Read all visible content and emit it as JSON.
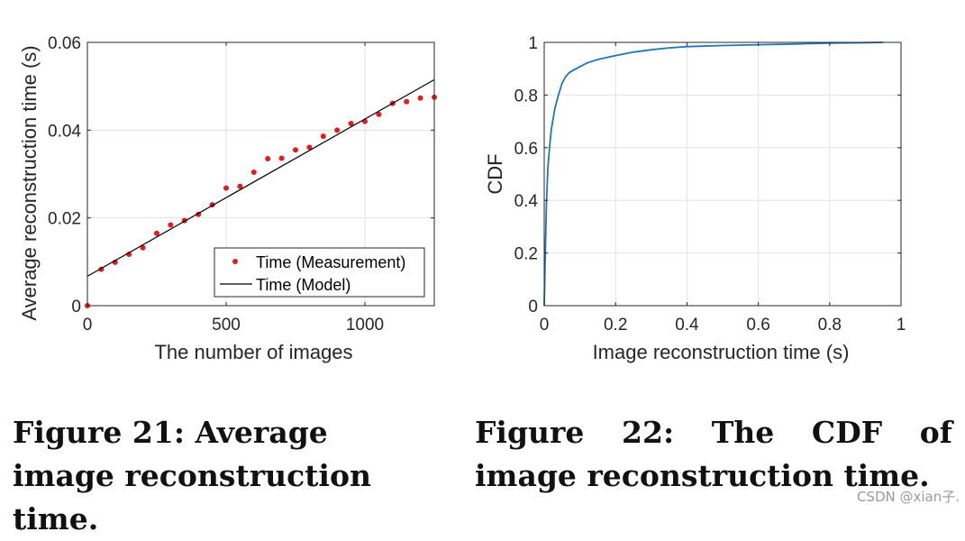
{
  "chart_data": [
    {
      "type": "scatter",
      "xlabel": "The number of images",
      "ylabel": "Average reconstruction time (s)",
      "xlim": [
        0,
        1250
      ],
      "ylim": [
        0,
        0.06
      ],
      "xticks": [
        0,
        500,
        1000
      ],
      "xtick_labels": [
        "0",
        "500",
        "1000"
      ],
      "yticks": [
        0,
        0.02,
        0.04,
        0.06
      ],
      "ytick_labels": [
        "0",
        "0.02",
        "0.04",
        "0.06"
      ],
      "grid": true,
      "legend_position": "bottom-right",
      "series": [
        {
          "name": "Time (Measurement)",
          "kind": "points",
          "color": "#e41a1c",
          "x": [
            0,
            50,
            100,
            150,
            200,
            250,
            300,
            350,
            400,
            450,
            500,
            550,
            600,
            650,
            700,
            750,
            800,
            850,
            900,
            950,
            1000,
            1050,
            1100,
            1150,
            1200,
            1250
          ],
          "y": [
            0.0,
            0.0083,
            0.0099,
            0.0117,
            0.0132,
            0.0165,
            0.0184,
            0.0194,
            0.0208,
            0.023,
            0.0268,
            0.0272,
            0.0304,
            0.0335,
            0.0336,
            0.0355,
            0.0361,
            0.0386,
            0.04,
            0.0415,
            0.042,
            0.0436,
            0.0461,
            0.0465,
            0.0473,
            0.0475
          ]
        },
        {
          "name": "Time (Model)",
          "kind": "line",
          "color": "#000000",
          "x": [
            0,
            1250
          ],
          "y": [
            0.0067,
            0.0515
          ]
        }
      ]
    },
    {
      "type": "line",
      "xlabel": "Image reconstruction time (s)",
      "ylabel": "CDF",
      "xlim": [
        0,
        1
      ],
      "ylim": [
        0,
        1
      ],
      "xticks": [
        0,
        0.2,
        0.4,
        0.6,
        0.8,
        1
      ],
      "xtick_labels": [
        "0",
        "0.2",
        "0.4",
        "0.6",
        "0.8",
        "1"
      ],
      "yticks": [
        0,
        0.2,
        0.4,
        0.6,
        0.8,
        1
      ],
      "ytick_labels": [
        "0",
        "0.2",
        "0.4",
        "0.6",
        "0.8",
        "1"
      ],
      "grid": true,
      "series": [
        {
          "color": "#1f77b4",
          "x": [
            0,
            0.003,
            0.006,
            0.01,
            0.015,
            0.02,
            0.03,
            0.04,
            0.05,
            0.06,
            0.07,
            0.08,
            0.1,
            0.12,
            0.15,
            0.2,
            0.25,
            0.3,
            0.35,
            0.4,
            0.5,
            0.6,
            0.7,
            0.8,
            0.9,
            0.95
          ],
          "y": [
            0,
            0.2,
            0.38,
            0.52,
            0.6,
            0.67,
            0.75,
            0.8,
            0.845,
            0.87,
            0.885,
            0.893,
            0.908,
            0.922,
            0.935,
            0.95,
            0.963,
            0.972,
            0.979,
            0.984,
            0.988,
            0.991,
            0.994,
            0.997,
            0.999,
            1.0
          ]
        }
      ]
    }
  ],
  "captions": {
    "fig21": "Figure 21: Average image reconstruction time.",
    "fig22": "Figure 22: The CDF of image reconstruction time."
  },
  "watermark": "CSDN @xian子."
}
